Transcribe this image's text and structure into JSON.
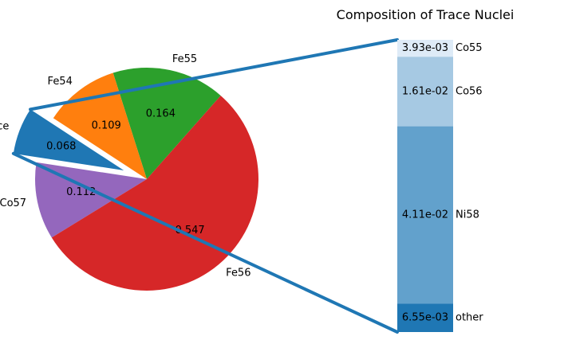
{
  "pie": {
    "type": "pie",
    "slices": [
      {
        "label": "Fe55",
        "value": 0.164,
        "display": "0.164",
        "color": "#2ca02c"
      },
      {
        "label": "Fe54",
        "value": 0.109,
        "display": "0.109",
        "color": "#ff7f0e"
      },
      {
        "label": "trace",
        "value": 0.068,
        "display": "0.068",
        "color": "#1f77b4",
        "exploded": true
      },
      {
        "label": "Co57",
        "value": 0.112,
        "display": "0.112",
        "color": "#9467bd"
      },
      {
        "label": "Fe56",
        "value": 0.547,
        "display": "0.547",
        "color": "#d62728"
      }
    ]
  },
  "bar": {
    "type": "bar",
    "title": "Composition of Trace Nuclei",
    "segments": [
      {
        "label": "Co55",
        "value": 0.00393,
        "display": "3.93e-03",
        "color": "#deebf7"
      },
      {
        "label": "Co56",
        "value": 0.0161,
        "display": "1.61e-02",
        "color": "#a6c9e3"
      },
      {
        "label": "Ni58",
        "value": 0.0411,
        "display": "4.11e-02",
        "color": "#62a1cc"
      },
      {
        "label": "other",
        "value": 0.00655,
        "display": "6.55e-03",
        "color": "#1f77b4"
      }
    ]
  },
  "connector_color": "#1f77b4"
}
